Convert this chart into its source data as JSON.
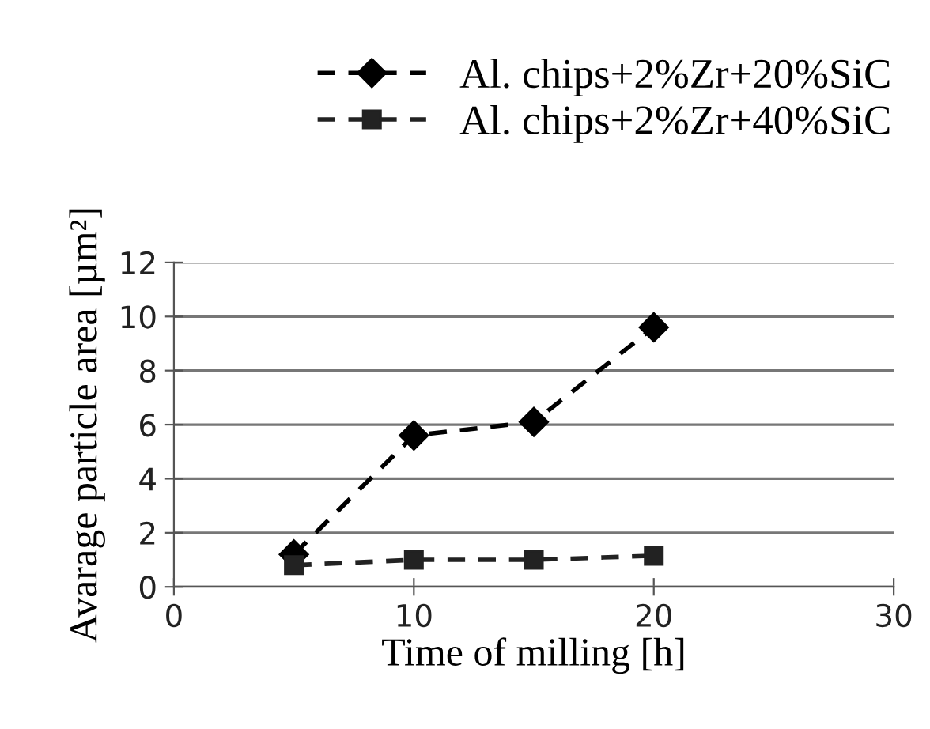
{
  "chart_data": {
    "type": "line",
    "xlabel": "Time of milling [h]",
    "ylabel": "Avarage particle area [µm²]",
    "x": [
      5,
      10,
      15,
      20
    ],
    "series": [
      {
        "name": "Al. chips+2%Zr+20%SiC",
        "color": "#000000",
        "values": [
          1.2,
          5.6,
          6.1,
          9.6
        ],
        "marker": "diamond"
      },
      {
        "name": "Al. chips+2%Zr+40%SiC",
        "color": "#222222",
        "values": [
          0.8,
          1.0,
          1.0,
          1.15
        ],
        "marker": "square"
      }
    ],
    "xlim": [
      0,
      30
    ],
    "xticks": [
      0,
      10,
      20,
      30
    ],
    "ylim": [
      0,
      12
    ],
    "yticks": [
      0,
      2,
      4,
      6,
      8,
      10,
      12
    ],
    "grid": "y",
    "legend": "top right",
    "line_style": "dashed"
  }
}
